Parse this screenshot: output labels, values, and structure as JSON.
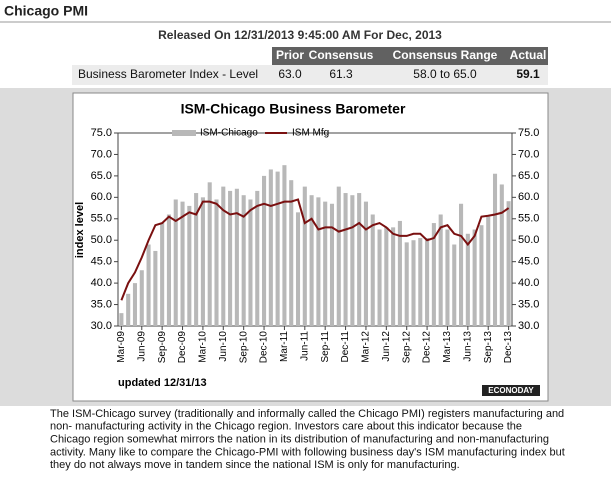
{
  "header": {
    "title": "Chicago PMI",
    "release": "Released On 12/31/2013 9:45:00 AM For Dec, 2013"
  },
  "table": {
    "columns": [
      "Prior",
      "Consensus",
      "Consensus Range",
      "Actual"
    ],
    "rows": [
      [
        "Business Barometer Index - Level",
        "63.0",
        "61.3",
        "58.0 to 65.0",
        "59.1"
      ]
    ]
  },
  "chart_data": {
    "type": "bar",
    "title": "ISM-Chicago Business  Barometer",
    "y_label": "index level",
    "footnote": "updated 12/31/13",
    "logo": "ECONODAY",
    "categories": [
      "Mar-09",
      null,
      null,
      "Jun-09",
      null,
      null,
      "Sep-09",
      null,
      null,
      "Dec-09",
      null,
      null,
      "Mar-10",
      null,
      null,
      "Jun-10",
      null,
      null,
      "Sep-10",
      null,
      null,
      "Dec-10",
      null,
      null,
      "Mar-11",
      null,
      null,
      "Jun-11",
      null,
      null,
      "Sep-11",
      null,
      null,
      "Dec-11",
      null,
      null,
      "Mar-12",
      null,
      null,
      "Jun-12",
      null,
      null,
      "Sep-12",
      null,
      null,
      "Dec-12",
      null,
      null,
      "Mar-13",
      null,
      null,
      "Jun-13",
      null,
      null,
      "Sep-13",
      null,
      null,
      "Dec-13"
    ],
    "series": [
      {
        "name": "ISM-Chicago",
        "type": "bar",
        "color": "#b8b8b8",
        "values": [
          33,
          37.5,
          40,
          43,
          49,
          47.5,
          54,
          56,
          59.5,
          59,
          58,
          61,
          60,
          63.5,
          59.5,
          62.5,
          61.5,
          62,
          60.5,
          59.5,
          61.5,
          65,
          66.5,
          66,
          67.5,
          64,
          56.5,
          62.5,
          60.5,
          60,
          59,
          58.5,
          62.5,
          61,
          60.5,
          61,
          59,
          56,
          52.5,
          53,
          53,
          54.5,
          49.5,
          50,
          50.5,
          50.5,
          54,
          56,
          52.5,
          49,
          58.5,
          51.5,
          52.5,
          53.5,
          55.5,
          65.5,
          63,
          59.1
        ]
      },
      {
        "name": "ISM Mfg",
        "type": "line",
        "color": "#7a1010",
        "values": [
          36,
          40,
          42.5,
          46,
          50,
          53.5,
          54,
          55.5,
          54.5,
          55.5,
          56.5,
          56,
          59,
          59,
          58.5,
          57,
          56,
          56.3,
          55.5,
          57,
          58,
          58.5,
          58,
          58.5,
          59,
          59,
          59.5,
          54,
          55,
          52.5,
          53,
          53,
          52,
          52.5,
          53,
          54,
          52.5,
          53.5,
          54,
          53,
          51.5,
          51,
          51,
          51.5,
          51.5,
          50,
          50.5,
          53,
          53.5,
          51.5,
          51,
          49,
          51,
          55.5,
          55.7,
          56,
          56.4,
          57.5
        ]
      }
    ],
    "ylim": [
      30,
      75
    ],
    "y2lim": [
      30,
      75
    ],
    "yticks": [
      {
        "value": 30,
        "label": "30.0"
      },
      {
        "value": 35,
        "label": "35.0"
      },
      {
        "value": 40,
        "label": "40.0"
      },
      {
        "value": 45,
        "label": "45.0"
      },
      {
        "value": 50,
        "label": "50.0"
      },
      {
        "value": 55,
        "label": "55.0"
      },
      {
        "value": 60,
        "label": "60.0"
      },
      {
        "value": 65,
        "label": "65.0"
      },
      {
        "value": 70,
        "label": "70.0"
      },
      {
        "value": 75,
        "label": "75.0"
      }
    ],
    "y2ticks": [
      {
        "value": 30,
        "label": "30.0"
      },
      {
        "value": 35,
        "label": "35.0"
      },
      {
        "value": 40,
        "label": "40.0"
      },
      {
        "value": 45,
        "label": "45.0"
      },
      {
        "value": 50,
        "label": "50.0"
      },
      {
        "value": 55,
        "label": "55.0"
      },
      {
        "value": 60,
        "label": "60.0"
      },
      {
        "value": 65,
        "label": "65.0"
      },
      {
        "value": 70,
        "label": "70.0"
      },
      {
        "value": 75,
        "label": "75.0"
      }
    ],
    "grid": false
  },
  "description": [
    "The ISM-Chicago survey (traditionally and informally called the Chicago PMI) registers manufacturing and",
    "non- manufacturing activity in the Chicago region. Investors care about this indicator because the",
    "Chicago region somewhat mirrors the nation in its distribution of manufacturing and non-manufacturing",
    "activity. Many like to compare the Chicago-PMI with following business day's ISM manufacturing index but",
    "they do not always move in tandem since the national ISM is only for manufacturing."
  ]
}
